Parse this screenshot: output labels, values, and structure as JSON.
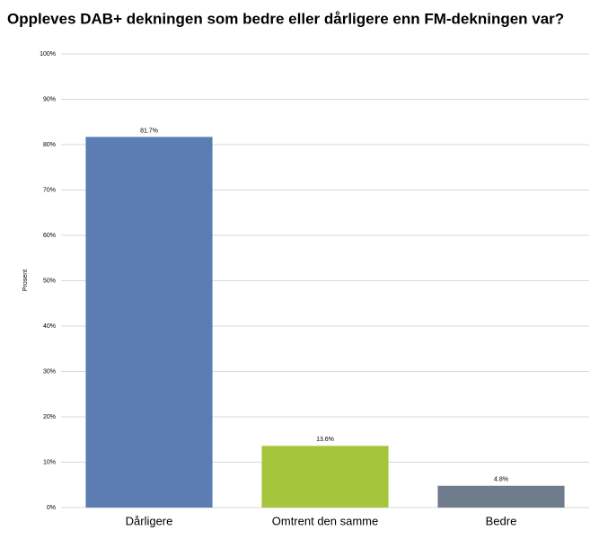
{
  "chart_data": {
    "type": "bar",
    "title": "Oppleves DAB+ dekningen som bedre eller dårligere enn FM-dekningen var?",
    "y_label": "Prosent",
    "categories": [
      "Dårligere",
      "Omtrent den samme",
      "Bedre"
    ],
    "values": [
      81.7,
      13.6,
      4.8
    ],
    "value_labels": [
      "81.7%",
      "13.6%",
      "4.8%"
    ],
    "colors": [
      "#5b7db1",
      "#a5c63b",
      "#6f7c8b"
    ],
    "ylim": [
      0,
      100
    ],
    "yticks": [
      {
        "value": 0,
        "label": "0%"
      },
      {
        "value": 10,
        "label": "10%"
      },
      {
        "value": 20,
        "label": "20%"
      },
      {
        "value": 30,
        "label": "30%"
      },
      {
        "value": 40,
        "label": "40%"
      },
      {
        "value": 50,
        "label": "50%"
      },
      {
        "value": 60,
        "label": "60%"
      },
      {
        "value": 70,
        "label": "70%"
      },
      {
        "value": 80,
        "label": "80%"
      },
      {
        "value": 90,
        "label": "90%"
      },
      {
        "value": 100,
        "label": "100%"
      }
    ],
    "grid": true
  }
}
